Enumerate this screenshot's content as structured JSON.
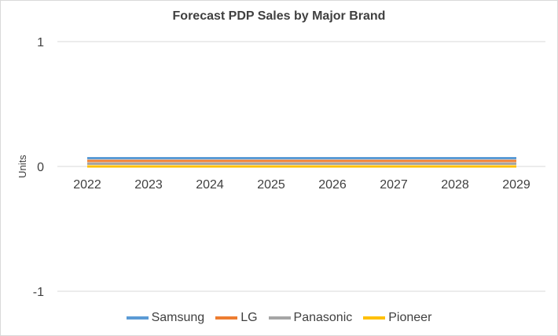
{
  "chart_data": {
    "type": "line",
    "title": "Forecast PDP Sales by Major Brand",
    "xlabel": "",
    "ylabel": "Units",
    "categories": [
      "2022",
      "2023",
      "2024",
      "2025",
      "2026",
      "2027",
      "2028",
      "2029"
    ],
    "ylim": [
      -1,
      1
    ],
    "yticks": [
      "1",
      "0",
      "-1"
    ],
    "grid": true,
    "legend_position": "bottom",
    "series": [
      {
        "name": "Samsung",
        "color": "#5b9bd5",
        "values": [
          0,
          0,
          0,
          0,
          0,
          0,
          0,
          0
        ]
      },
      {
        "name": "LG",
        "color": "#ed7d31",
        "values": [
          0,
          0,
          0,
          0,
          0,
          0,
          0,
          0
        ]
      },
      {
        "name": "Panasonic",
        "color": "#a5a5a5",
        "values": [
          0,
          0,
          0,
          0,
          0,
          0,
          0,
          0
        ]
      },
      {
        "name": "Pioneer",
        "color": "#ffc000",
        "values": [
          0,
          0,
          0,
          0,
          0,
          0,
          0,
          0
        ]
      }
    ]
  }
}
